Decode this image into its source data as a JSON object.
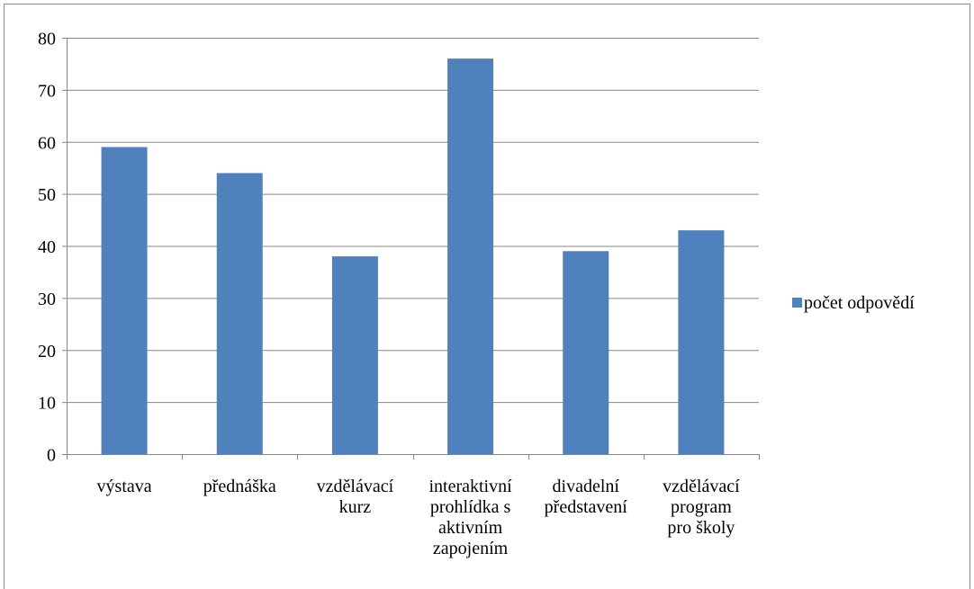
{
  "chart_data": {
    "type": "bar",
    "title": "",
    "xlabel": "",
    "ylabel": "",
    "categories": [
      [
        "výstava"
      ],
      [
        "přednáška"
      ],
      [
        "vzdělávací",
        "kurz"
      ],
      [
        "interaktivní",
        "prohlídka s",
        "aktivním",
        "zapojením"
      ],
      [
        "divadelní",
        "představení"
      ],
      [
        "vzdělávací",
        "program",
        "pro školy"
      ]
    ],
    "series": [
      {
        "name": "počet odpovědí",
        "color": "#4f81bd",
        "values": [
          59,
          54,
          38,
          76,
          39,
          43
        ]
      }
    ],
    "ylim": [
      0,
      80
    ],
    "yticks": [
      0,
      10,
      20,
      30,
      40,
      50,
      60,
      70,
      80
    ],
    "grid": true,
    "legend_position": "right"
  }
}
